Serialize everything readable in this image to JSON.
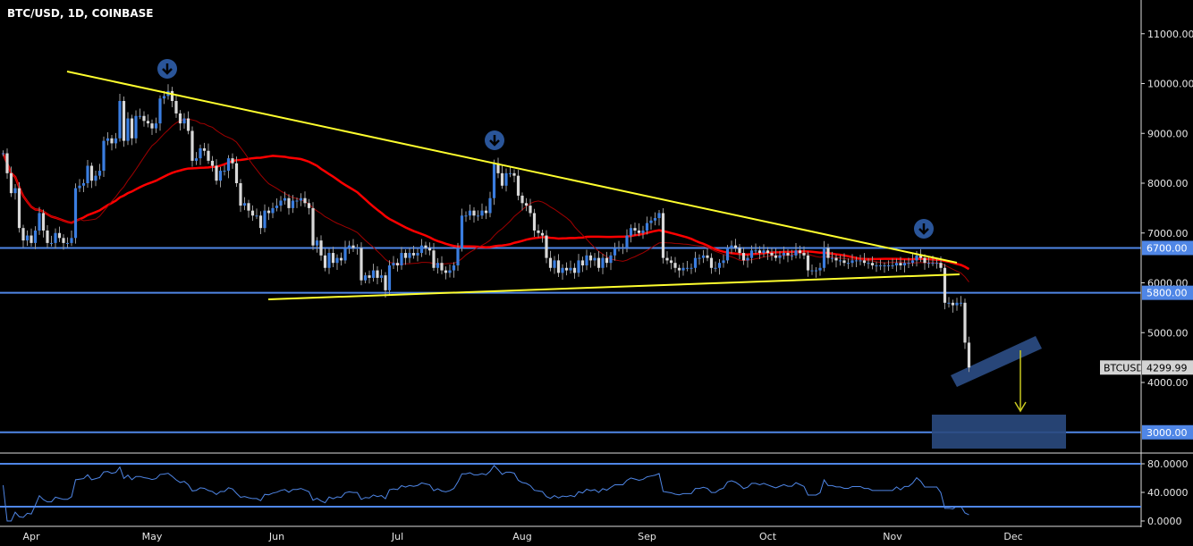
{
  "header": {
    "title": "BTC/USD, 1D, COINBASE"
  },
  "colors": {
    "up": "#3a7de0",
    "down": "#d9d9d9",
    "ma_slow": "#ff0000",
    "ma_fast": "#a00000",
    "trendline": "#ffff2e",
    "level": "#4f86e6",
    "zone": "#2a4a80",
    "rsi": "#4f86e6"
  },
  "price_tag": {
    "symbol": "BTCUSD",
    "value": "4299.99"
  },
  "chart_data": [
    {
      "type": "candlestick",
      "title": "BTC/USD, 1D, COINBASE",
      "ylim": [
        2500,
        11700
      ],
      "y_ticks": [
        "11000.00",
        "10000.00",
        "9000.00",
        "8000.00",
        "7000.00",
        "6000.00",
        "5000.00",
        "4000.00"
      ],
      "levels": [
        {
          "value": 6700,
          "label": "6700.00"
        },
        {
          "value": 5800,
          "label": "5800.00"
        },
        {
          "value": 3000,
          "label": "3000.00"
        }
      ],
      "series": [
        {
          "month": "",
          "closes": [
            8600,
            8200,
            7800,
            7900,
            7100,
            6850,
            6950
          ]
        },
        {
          "month": "Apr",
          "closes": [
            6800,
            7050,
            7400,
            7050,
            6800,
            6800,
            7000,
            6900,
            6800,
            6800,
            6900,
            7900,
            7950,
            8000,
            8350,
            8050,
            8150,
            8250,
            8850,
            8900,
            8800,
            8900,
            9650,
            8850,
            9300,
            8900,
            9350,
            9350,
            9250,
            9200
          ]
        },
        {
          "month": "May",
          "closes": [
            9100,
            9200,
            9700,
            9750,
            9850,
            9650,
            9400,
            9200,
            9300,
            9050,
            8450,
            8500,
            8700,
            8650,
            8450,
            8350,
            8050,
            8250,
            8250,
            8500,
            8400,
            8000,
            7550,
            7600,
            7450,
            7350,
            7350,
            7100,
            7450,
            7400,
            7500
          ]
        },
        {
          "month": "Jun",
          "closes": [
            7550,
            7650,
            7700,
            7500,
            7650,
            7650,
            7700,
            7600,
            7500,
            6750,
            6850,
            6550,
            6300,
            6600,
            6400,
            6500,
            6450,
            6700,
            6750,
            6700,
            6700,
            6050,
            6150,
            6100,
            6250,
            6100,
            6150,
            5850,
            6350,
            6400
          ]
        },
        {
          "month": "Jul",
          "closes": [
            6350,
            6600,
            6500,
            6600,
            6550,
            6600,
            6750,
            6700,
            6650,
            6300,
            6400,
            6250,
            6200,
            6250,
            6350,
            6700,
            7350,
            7350,
            7450,
            7350,
            7350,
            7450,
            7400,
            7700,
            8400,
            8200,
            7950,
            8200,
            8200,
            8150,
            7750
          ]
        },
        {
          "month": "Aug",
          "closes": [
            7600,
            7550,
            7400,
            7050,
            7000,
            6950,
            6500,
            6300,
            6450,
            6200,
            6300,
            6250,
            6300,
            6200,
            6450,
            6350,
            6550,
            6450,
            6500,
            6300,
            6500,
            6400,
            6550,
            6700,
            6700,
            6700,
            6950,
            7100,
            7050,
            7000,
            7050
          ]
        },
        {
          "month": "Sep",
          "closes": [
            7200,
            7250,
            7300,
            7400,
            6500,
            6450,
            6400,
            6300,
            6250,
            6300,
            6300,
            6300,
            6500,
            6500,
            6550,
            6500,
            6300,
            6300,
            6400,
            6450,
            6700,
            6750,
            6700,
            6600,
            6450,
            6500,
            6650,
            6650,
            6600,
            6650
          ]
        },
        {
          "month": "Oct",
          "closes": [
            6600,
            6550,
            6500,
            6550,
            6600,
            6550,
            6550,
            6650,
            6600,
            6550,
            6250,
            6250,
            6250,
            6300,
            6700,
            6500,
            6500,
            6450,
            6450,
            6400,
            6400,
            6450,
            6450,
            6450,
            6400,
            6400,
            6350,
            6350,
            6350,
            6350,
            6350
          ]
        },
        {
          "month": "Nov",
          "closes": [
            6350,
            6400,
            6350,
            6400,
            6400,
            6450,
            6550,
            6500,
            6400,
            6400,
            6400,
            6400,
            6300,
            5600,
            5600,
            5550,
            5600,
            5600,
            4800,
            4299.99
          ]
        },
        {
          "month": "Dec",
          "closes": []
        }
      ]
    },
    {
      "type": "line",
      "title": "",
      "ylim": [
        0,
        100
      ],
      "y_ticks": [
        "80.0000",
        "40.0000",
        "0.0000"
      ],
      "levels": [
        80,
        20
      ]
    }
  ]
}
